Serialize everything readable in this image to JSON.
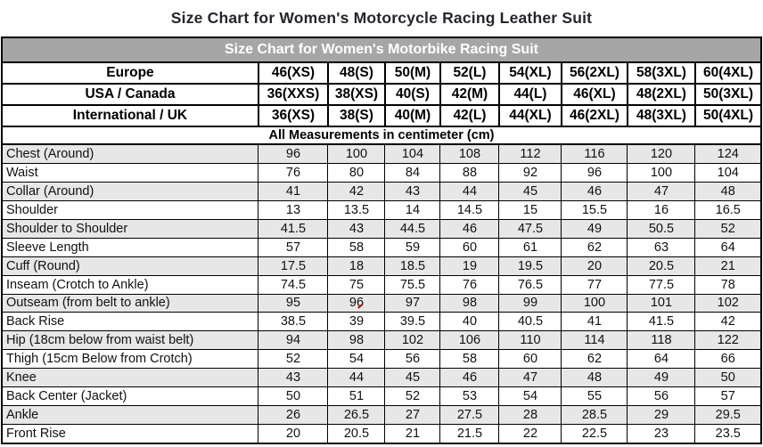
{
  "page_title": "Size Chart for Women's Motorcycle Racing Leather Suit",
  "table": {
    "header": "Size Chart for Women's Motorbike Racing Suit",
    "size_rows": [
      {
        "label": "Europe",
        "values": [
          "46(XS)",
          "48(S)",
          "50(M)",
          "52(L)",
          "54(XL)",
          "56(2XL)",
          "58(3XL)",
          "60(4XL)"
        ]
      },
      {
        "label": "USA / Canada",
        "values": [
          "36(XXS)",
          "38(XS)",
          "40(S)",
          "42(M)",
          "44(L)",
          "46(XL)",
          "48(2XL)",
          "50(3XL)"
        ]
      },
      {
        "label": "International / UK",
        "values": [
          "36(XS)",
          "38(S)",
          "40(M)",
          "42(L)",
          "44(XL)",
          "46(2XL)",
          "48(3XL)",
          "50(4XL)"
        ]
      }
    ],
    "note": "All Measurements in centimeter (cm)",
    "measurement_rows": [
      {
        "label": "Chest (Around)",
        "values": [
          "96",
          "100",
          "104",
          "108",
          "112",
          "116",
          "120",
          "124"
        ]
      },
      {
        "label": "Waist",
        "values": [
          "76",
          "80",
          "84",
          "88",
          "92",
          "96",
          "100",
          "104"
        ]
      },
      {
        "label": "Collar (Around)",
        "values": [
          "41",
          "42",
          "43",
          "44",
          "45",
          "46",
          "47",
          "48"
        ]
      },
      {
        "label": "Shoulder",
        "values": [
          "13",
          "13.5",
          "14",
          "14.5",
          "15",
          "15.5",
          "16",
          "16.5"
        ]
      },
      {
        "label": "Shoulder to Shoulder",
        "values": [
          "41.5",
          "43",
          "44.5",
          "46",
          "47.5",
          "49",
          "50.5",
          "52"
        ]
      },
      {
        "label": "Sleeve Length",
        "values": [
          "57",
          "58",
          "59",
          "60",
          "61",
          "62",
          "63",
          "64"
        ]
      },
      {
        "label": "Cuff (Round)",
        "values": [
          "17.5",
          "18",
          "18.5",
          "19",
          "19.5",
          "20",
          "20.5",
          "21"
        ]
      },
      {
        "label": "Inseam (Crotch to Ankle)",
        "values": [
          "74.5",
          "75",
          "75.5",
          "76",
          "76.5",
          "77",
          "77.5",
          "78"
        ]
      },
      {
        "label": "Outseam (from belt to ankle)",
        "values": [
          "95",
          "96",
          "97",
          "98",
          "99",
          "100",
          "101",
          "102"
        ]
      },
      {
        "label": "Back Rise",
        "values": [
          "38.5",
          "39",
          "39.5",
          "40",
          "40.5",
          "41",
          "41.5",
          "42"
        ]
      },
      {
        "label": "Hip (18cm below from waist belt)",
        "values": [
          "94",
          "98",
          "102",
          "106",
          "110",
          "114",
          "118",
          "122"
        ]
      },
      {
        "label": "Thigh (15cm Below from Crotch)",
        "values": [
          "52",
          "54",
          "56",
          "58",
          "60",
          "62",
          "64",
          "66"
        ]
      },
      {
        "label": "Knee",
        "values": [
          "43",
          "44",
          "45",
          "46",
          "47",
          "48",
          "49",
          "50"
        ]
      },
      {
        "label": "Back Center (Jacket)",
        "values": [
          "50",
          "51",
          "52",
          "53",
          "54",
          "55",
          "56",
          "57"
        ]
      },
      {
        "label": "Ankle",
        "values": [
          "26",
          "26.5",
          "27",
          "27.5",
          "28",
          "28.5",
          "29",
          "29.5"
        ]
      },
      {
        "label": "Front Rise",
        "values": [
          "20",
          "20.5",
          "21",
          "21.5",
          "22",
          "22.5",
          "23",
          "23.5"
        ]
      }
    ],
    "red_mark": {
      "row_index": 8,
      "col_index": 1,
      "color": "#d40000"
    }
  },
  "colors": {
    "title_text": "#25252e",
    "table_header_bg": "#a6a6a6",
    "table_header_text": "#ffffff",
    "row_alt_bg": "#e7e7e7",
    "border": "#000000"
  }
}
